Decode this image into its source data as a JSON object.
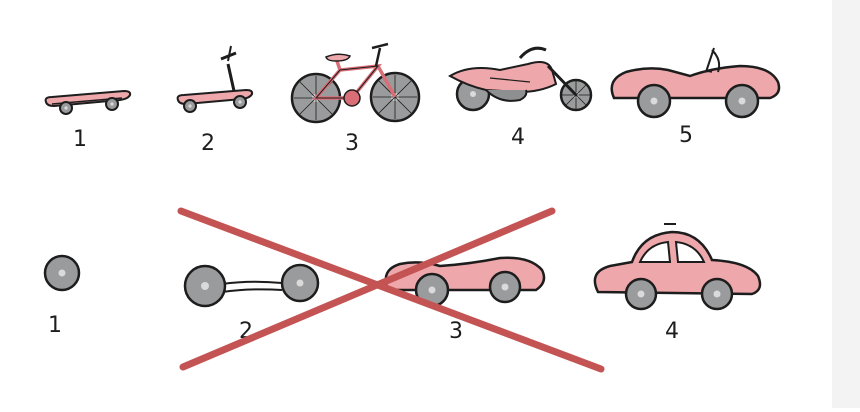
{
  "colors": {
    "ink": "#1d1d1d",
    "body_pink": "#eea7aa",
    "body_pink_dark": "#d96e76",
    "wheel_gray": "#9a9b9c",
    "wheel_hub": "#dadada",
    "cross_red": "#c45454",
    "side_strip": "#f3f3f3",
    "window_fill": "#ffffff"
  },
  "rows": {
    "mvp_good": {
      "steps": [
        {
          "label": "1",
          "item": "skateboard"
        },
        {
          "label": "2",
          "item": "scooter"
        },
        {
          "label": "3",
          "item": "bicycle"
        },
        {
          "label": "4",
          "item": "motorcycle"
        },
        {
          "label": "5",
          "item": "convertible-car"
        }
      ]
    },
    "mvp_bad": {
      "steps": [
        {
          "label": "1",
          "item": "wheel"
        },
        {
          "label": "2",
          "item": "axle-with-wheels"
        },
        {
          "label": "3",
          "item": "car-chassis"
        },
        {
          "label": "4",
          "item": "car"
        }
      ],
      "crossed_out_steps": [
        "2",
        "3"
      ]
    }
  }
}
